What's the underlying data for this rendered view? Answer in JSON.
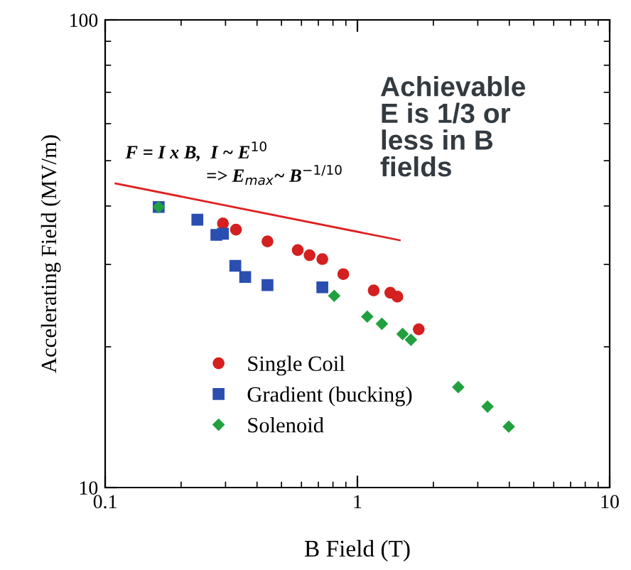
{
  "chart_data": {
    "type": "scatter",
    "xlabel": "B Field (T)",
    "ylabel": "Accelerating Field (MV/m)",
    "log": "xy",
    "xlim": [
      0.1,
      10
    ],
    "ylim": [
      10,
      100
    ],
    "xticks": [
      0.1,
      1,
      10
    ],
    "yticks": [
      10,
      100
    ],
    "grid": false,
    "legend": "bottom left",
    "annotations": [
      "F = I x B,  I ~ E$^{10}$",
      "=> E$_{max}$~ B$^{−1/10}$",
      "Achievable\nE is 1/3 or\nless in B\nfields"
    ],
    "series": [
      {
        "type": "line",
        "color": "#e02020",
        "line_style": "solid",
        "marker": "none",
        "x": [
          0.11,
          1.47
        ],
        "values": [
          44.7,
          33.8
        ]
      },
      {
        "name": "Single Coil",
        "color": "#d42020",
        "marker": "circle",
        "x": [
          0.293,
          0.33,
          0.44,
          0.58,
          0.646,
          0.726,
          0.879,
          1.16,
          1.35,
          1.44,
          1.75
        ],
        "values": [
          36.7,
          35.6,
          33.6,
          32.2,
          31.4,
          30.8,
          28.6,
          26.4,
          26.1,
          25.6,
          21.8
        ]
      },
      {
        "name": "Gradient (bucking)",
        "color": "#2a4fb0",
        "marker": "square",
        "x": [
          0.163,
          0.232,
          0.276,
          0.293,
          0.328,
          0.359,
          0.44,
          0.726
        ],
        "values": [
          39.8,
          37.4,
          34.7,
          34.9,
          29.8,
          28.2,
          27.1,
          26.8
        ]
      },
      {
        "name": "Solenoid",
        "color": "#22a040",
        "marker": "diamond",
        "x": [
          0.163,
          0.809,
          1.094,
          1.25,
          1.51,
          1.63,
          2.51,
          3.28,
          3.98
        ],
        "values": [
          39.8,
          25.7,
          23.2,
          22.4,
          21.3,
          20.7,
          16.4,
          14.9,
          13.5
        ]
      }
    ]
  }
}
